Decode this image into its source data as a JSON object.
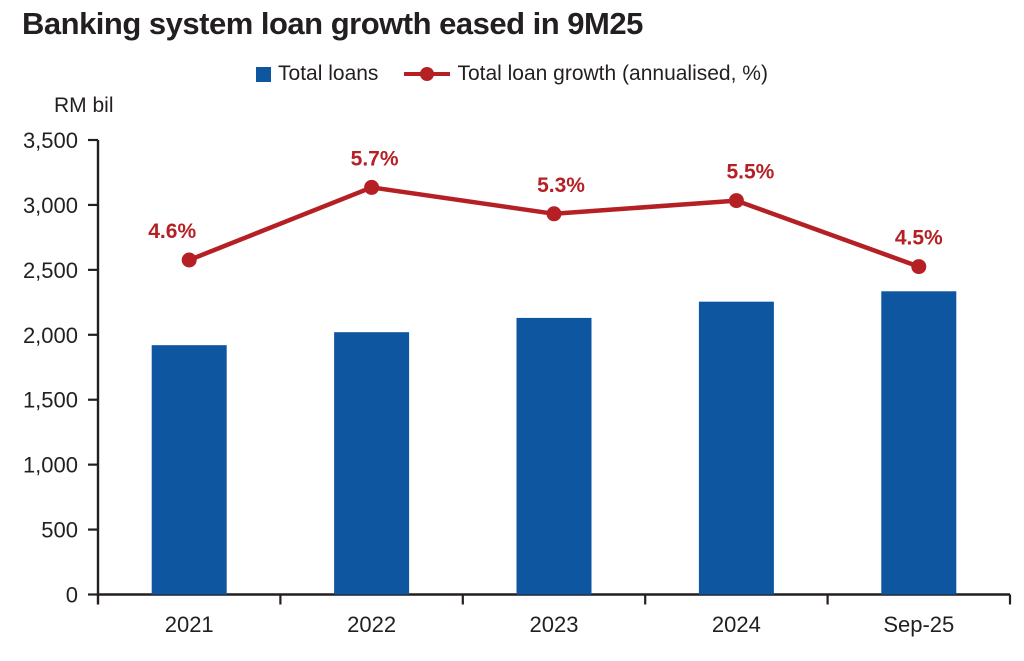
{
  "chart_data": {
    "type": "bar",
    "title": "Banking system loan growth eased in 9M25",
    "ylabel": "RM bil",
    "categories": [
      "2021",
      "2022",
      "2023",
      "2024",
      "Sep-25"
    ],
    "series": [
      {
        "name": "Total loans",
        "type": "bar",
        "axis": "primary",
        "values": [
          1920,
          2020,
          2130,
          2255,
          2335
        ],
        "color": "#0e56a0"
      },
      {
        "name": "Total loan growth (annualised, %)",
        "type": "line",
        "axis": "secondary",
        "values": [
          4.6,
          5.7,
          5.3,
          5.5,
          4.5
        ],
        "labels": [
          "4.6%",
          "5.7%",
          "5.3%",
          "5.5%",
          "4.5%"
        ],
        "color": "#b52025"
      }
    ],
    "ylim": [
      0,
      3500
    ],
    "y_ticks": [
      0,
      500,
      1000,
      1500,
      2000,
      2500,
      3000,
      3500
    ],
    "y_tick_labels": [
      "0",
      "500",
      "1,000",
      "1,500",
      "2,000",
      "2,500",
      "3,000",
      "3,500"
    ],
    "secondary_axis_visible": false,
    "legend_position": "top-center",
    "grid": false,
    "colors": {
      "bar": "#0e56a0",
      "line": "#b52025",
      "axis": "#231f20",
      "text": "#231f20"
    }
  }
}
